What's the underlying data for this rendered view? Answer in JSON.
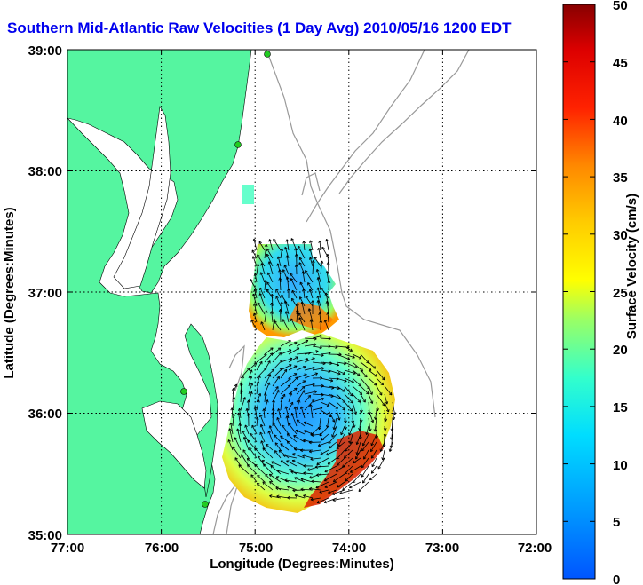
{
  "title": "Southern Mid-Atlantic Raw Velocities (1 Day Avg) 2010/05/16 1200 EDT",
  "x_axis": {
    "label": "Longitude (Degrees:Minutes)",
    "ticks": [
      "77:00",
      "76:00",
      "75:00",
      "74:00",
      "73:00",
      "72:00"
    ]
  },
  "y_axis": {
    "label": "Latitude (Degrees:Minutes)",
    "ticks": [
      "39:00",
      "38:00",
      "37:00",
      "36:00",
      "35:00"
    ]
  },
  "colorbar": {
    "label": "Surface Velocity (cm/s)",
    "ticks": [
      "50",
      "45",
      "40",
      "35",
      "30",
      "25",
      "20",
      "15",
      "10",
      "5",
      "0"
    ],
    "min": 0,
    "max": 50
  },
  "colors": {
    "land": "#55f5a0",
    "water": "#ffffff",
    "title": "#0000ee",
    "bathymetry": "#999999",
    "station": "#22cc22"
  },
  "map_extent": {
    "lon": [
      -77,
      -72
    ],
    "lat": [
      35,
      39
    ]
  },
  "grid": true
}
